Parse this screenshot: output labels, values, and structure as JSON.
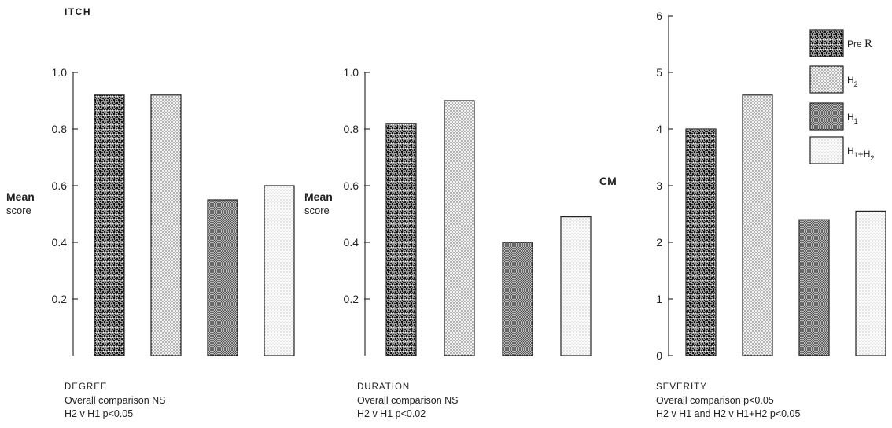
{
  "figure_title": "ITCH",
  "legend": {
    "entries": [
      {
        "label": "Pre R̶",
        "pattern": "coarse-dark"
      },
      {
        "label": "H2",
        "pattern": "fine-dot"
      },
      {
        "label": "H1",
        "pattern": "dense-dot"
      },
      {
        "label": "H1+H2",
        "pattern": "light-dot"
      }
    ]
  },
  "captions": [
    {
      "name": "DEGREE",
      "line1": "Overall comparison NS",
      "line2": "H2 v H1  p<0.05"
    },
    {
      "name": "DURATION",
      "line1": "Overall comparison NS",
      "line2": "H2 v H1  p<0.02"
    },
    {
      "name": "SEVERITY",
      "line1": "Overall comparison p<0.05",
      "line2": "H2 v H1 and H2 v H1+H2  p<0.05"
    }
  ],
  "chart_data": [
    {
      "type": "bar",
      "title": "DEGREE",
      "ylabel": "Mean score",
      "categories": [
        "Pre R",
        "H2",
        "H1",
        "H1+H2"
      ],
      "values": [
        0.92,
        0.92,
        0.55,
        0.6
      ],
      "ylim": [
        0,
        1.0
      ],
      "yticks": [
        "0.2",
        "0.4",
        "0.6",
        "0.8",
        "1.0"
      ],
      "grid": false
    },
    {
      "type": "bar",
      "title": "DURATION",
      "ylabel": "Mean score",
      "categories": [
        "Pre R",
        "H2",
        "H1",
        "H1+H2"
      ],
      "values": [
        0.82,
        0.9,
        0.4,
        0.49
      ],
      "ylim": [
        0,
        1.0
      ],
      "yticks": [
        "0.2",
        "0.4",
        "0.6",
        "0.8",
        "1.0"
      ],
      "grid": false
    },
    {
      "type": "bar",
      "title": "SEVERITY",
      "ylabel": "CM",
      "categories": [
        "Pre R",
        "H2",
        "H1",
        "H1+H2"
      ],
      "values": [
        4.0,
        4.6,
        2.4,
        2.55
      ],
      "ylim": [
        0,
        6
      ],
      "yticks": [
        "0",
        "1",
        "2",
        "3",
        "4",
        "5",
        "6"
      ],
      "grid": false
    }
  ]
}
